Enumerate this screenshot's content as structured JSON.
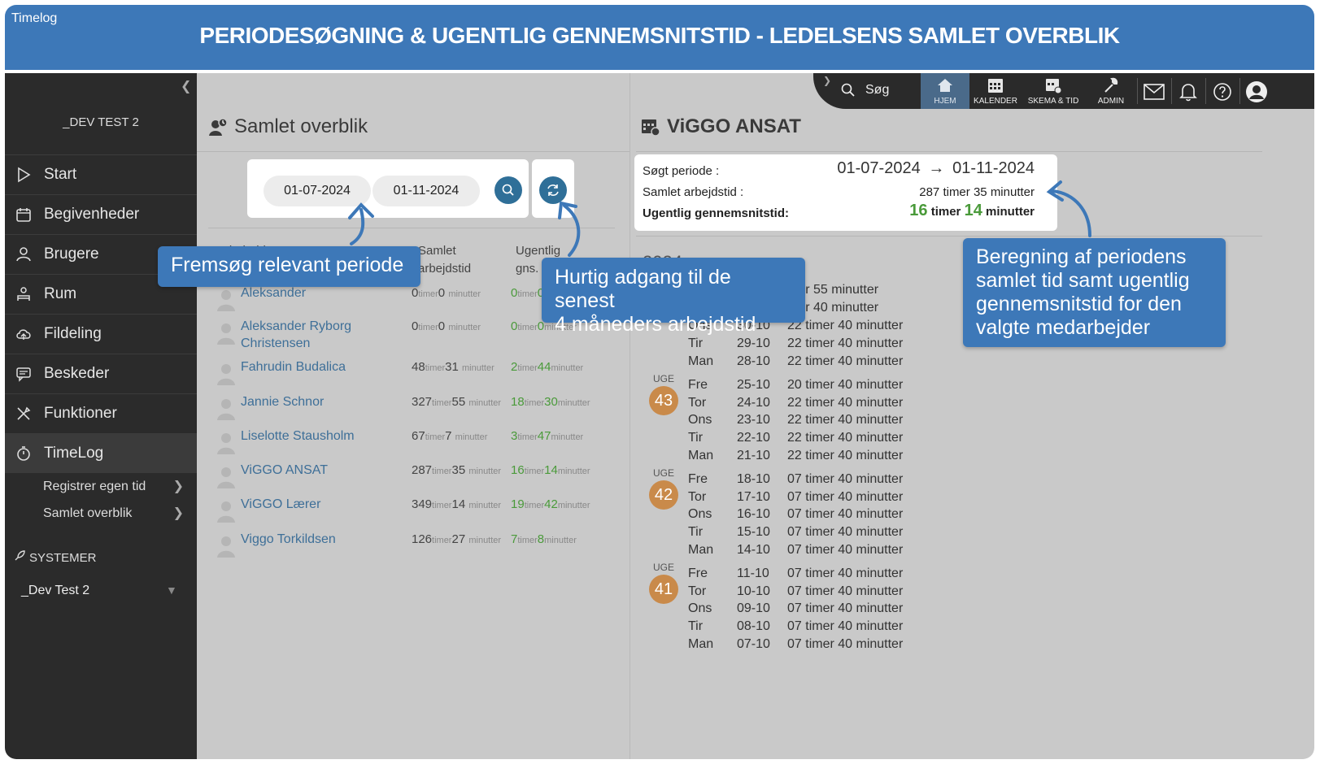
{
  "banner": {
    "app_label": "Timelog",
    "title": "PERIODESØGNING & UGENTLIG GENNEMSNITSTID - LEDELSENS SAMLET OVERBLIK"
  },
  "sidebar": {
    "org": "_DEV TEST 2",
    "items": [
      {
        "label": "Start",
        "icon": "play-icon"
      },
      {
        "label": "Begivenheder",
        "icon": "calendar-icon"
      },
      {
        "label": "Brugere",
        "icon": "users-icon"
      },
      {
        "label": "Rum",
        "icon": "room-icon"
      },
      {
        "label": "Fildeling",
        "icon": "cloud-icon"
      },
      {
        "label": "Beskeder",
        "icon": "chat-icon"
      },
      {
        "label": "Funktioner",
        "icon": "tools-icon"
      },
      {
        "label": "TimeLog",
        "icon": "stopwatch-icon"
      }
    ],
    "subitems": [
      {
        "label": "Registrer egen tid"
      },
      {
        "label": "Samlet overblik"
      }
    ],
    "systemer_label": "SYSTEMER",
    "system_select": "_Dev Test 2"
  },
  "topbar": {
    "search_label": "Søg",
    "buttons": [
      {
        "label": "HJEM",
        "icon": "home-icon"
      },
      {
        "label": "KALENDER",
        "icon": "calendar-icon"
      },
      {
        "label": "SKEMA & TID",
        "icon": "schedule-icon"
      },
      {
        "label": "ADMIN",
        "icon": "wrench-icon"
      }
    ]
  },
  "overview": {
    "title": "Samlet overblik",
    "date_from": "01-07-2024",
    "date_to": "01-11-2024",
    "col_name": "Medarbejdernavn",
    "col_total_line1": "Samlet",
    "col_total_line2": "arbejdstid",
    "col_avg_line1": "Ugentlig",
    "col_avg_line2": "gns. tid",
    "unit_timer": "timer",
    "unit_minutter": "minutter",
    "employees": [
      {
        "name": "Aleksander",
        "total_h": "0",
        "total_m": "0",
        "avg_h": "0",
        "avg_m": "0"
      },
      {
        "name": "Aleksander Ryborg Christensen",
        "total_h": "0",
        "total_m": "0",
        "avg_h": "0",
        "avg_m": "0"
      },
      {
        "name": "Fahrudin Budalica",
        "total_h": "48",
        "total_m": "31",
        "avg_h": "2",
        "avg_m": "44"
      },
      {
        "name": "Jannie Schnor",
        "total_h": "327",
        "total_m": "55",
        "avg_h": "18",
        "avg_m": "30"
      },
      {
        "name": "Liselotte Stausholm",
        "total_h": "67",
        "total_m": "7",
        "avg_h": "3",
        "avg_m": "47"
      },
      {
        "name": "ViGGO ANSAT",
        "total_h": "287",
        "total_m": "35",
        "avg_h": "16",
        "avg_m": "14"
      },
      {
        "name": "ViGGO Lærer",
        "total_h": "349",
        "total_m": "14",
        "avg_h": "19",
        "avg_m": "42"
      },
      {
        "name": "Viggo Torkildsen",
        "total_h": "126",
        "total_m": "27",
        "avg_h": "7",
        "avg_m": "8"
      }
    ]
  },
  "detail": {
    "title": "ViGGO ANSAT",
    "period_label": "Søgt periode :",
    "period_from": "01-07-2024",
    "period_to": "01-11-2024",
    "total_label": "Samlet arbejdstid :",
    "total_h": "287",
    "total_m": "35",
    "avg_label": "Ugentlig gennemsnitstid:",
    "avg_h": "16",
    "avg_m": "14",
    "unit_timer": "timer",
    "unit_minutter": "minutter",
    "year": "2024",
    "week_label": "UGE",
    "top_days": [
      {
        "day": "",
        "date": "",
        "time": "mer 55 minutter"
      },
      {
        "day": "",
        "date": "",
        "time": "mer 40 minutter"
      },
      {
        "day": "Ons",
        "date": "30-10",
        "time": "22 timer 40 minutter"
      },
      {
        "day": "Tir",
        "date": "29-10",
        "time": "22 timer 40 minutter"
      },
      {
        "day": "Man",
        "date": "28-10",
        "time": "22 timer 40 minutter"
      }
    ],
    "weeks": [
      {
        "week": "43",
        "days": [
          {
            "day": "Fre",
            "date": "25-10",
            "time": "20 timer 40 minutter"
          },
          {
            "day": "Tor",
            "date": "24-10",
            "time": "22 timer 40 minutter"
          },
          {
            "day": "Ons",
            "date": "23-10",
            "time": "22 timer 40 minutter"
          },
          {
            "day": "Tir",
            "date": "22-10",
            "time": "22 timer 40 minutter"
          },
          {
            "day": "Man",
            "date": "21-10",
            "time": "22 timer 40 minutter"
          }
        ]
      },
      {
        "week": "42",
        "days": [
          {
            "day": "Fre",
            "date": "18-10",
            "time": "07 timer 40 minutter"
          },
          {
            "day": "Tor",
            "date": "17-10",
            "time": "07 timer 40 minutter"
          },
          {
            "day": "Ons",
            "date": "16-10",
            "time": "07 timer 40 minutter"
          },
          {
            "day": "Tir",
            "date": "15-10",
            "time": "07 timer 40 minutter"
          },
          {
            "day": "Man",
            "date": "14-10",
            "time": "07 timer 40 minutter"
          }
        ]
      },
      {
        "week": "41",
        "days": [
          {
            "day": "Fre",
            "date": "11-10",
            "time": "07 timer 40 minutter"
          },
          {
            "day": "Tor",
            "date": "10-10",
            "time": "07 timer 40 minutter"
          },
          {
            "day": "Ons",
            "date": "09-10",
            "time": "07 timer 40 minutter"
          },
          {
            "day": "Tir",
            "date": "08-10",
            "time": "07 timer 40 minutter"
          },
          {
            "day": "Man",
            "date": "07-10",
            "time": "07 timer 40 minutter"
          }
        ]
      }
    ]
  },
  "callouts": {
    "search": "Fremsøg relevant periode",
    "refresh_line1": "Hurtig adgang til de senest",
    "refresh_line2": "4 måneders arbejdstid",
    "summary_line1": "Beregning af periodens",
    "summary_line2": "samlet tid samt ugentlig",
    "summary_line3": "gennemsnitstid for den",
    "summary_line4": "valgte medarbejder"
  },
  "colors": {
    "brand_blue": "#3d78b8",
    "sidebar_bg": "#2b2b2b",
    "green": "#4a9a3a",
    "link_blue": "#3e6f98",
    "week_badge": "#c98a4a"
  }
}
